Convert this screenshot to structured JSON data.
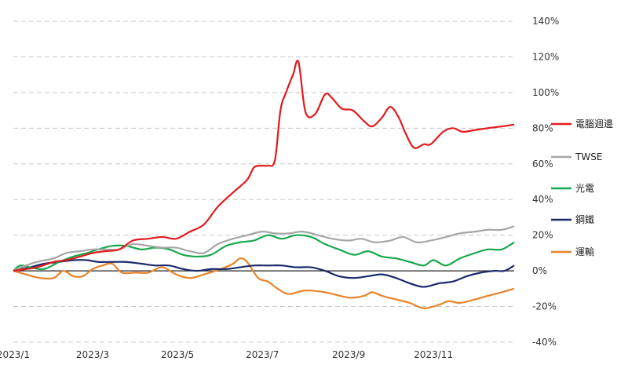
{
  "chart_data": {
    "type": "line",
    "title": "",
    "xlabel": "",
    "ylabel": "",
    "ylim": [
      -40,
      140
    ],
    "y_axis_side": "right",
    "y_ticks": [
      -40,
      -20,
      0,
      20,
      40,
      60,
      80,
      100,
      120,
      140
    ],
    "y_tick_labels": [
      "-40%",
      "-20%",
      "0%",
      "20%",
      "40%",
      "60%",
      "80%",
      "100%",
      "120%",
      "140%"
    ],
    "x_tick_labels": [
      "2023/1",
      "2023/3",
      "2023/5",
      "2023/7",
      "2023/9",
      "2023/11"
    ],
    "x_ticks": [
      "2023-01-03",
      "2023-03-01",
      "2023-05-01",
      "2023-07-01",
      "2023-09-01",
      "2023-11-01"
    ],
    "x_range": [
      "2023-01-03",
      "2023-12-29"
    ],
    "grid": "horizontal dashed",
    "legend": "right",
    "series": [
      {
        "name": "電腦週邊",
        "color": "#e3191c",
        "points": [
          [
            "2023-01-03",
            0
          ],
          [
            "2023-01-12",
            1
          ],
          [
            "2023-01-20",
            2
          ],
          [
            "2023-02-01",
            5
          ],
          [
            "2023-02-10",
            6
          ],
          [
            "2023-02-20",
            8
          ],
          [
            "2023-03-01",
            10
          ],
          [
            "2023-03-10",
            11
          ],
          [
            "2023-03-20",
            12
          ],
          [
            "2023-03-30",
            17
          ],
          [
            "2023-04-10",
            18
          ],
          [
            "2023-04-20",
            19
          ],
          [
            "2023-04-30",
            18
          ],
          [
            "2023-05-10",
            22
          ],
          [
            "2023-05-20",
            26
          ],
          [
            "2023-05-30",
            36
          ],
          [
            "2023-06-10",
            44
          ],
          [
            "2023-06-20",
            51
          ],
          [
            "2023-06-25",
            58
          ],
          [
            "2023-07-01",
            59
          ],
          [
            "2023-07-05",
            59
          ],
          [
            "2023-07-10",
            62
          ],
          [
            "2023-07-14",
            90
          ],
          [
            "2023-07-18",
            100
          ],
          [
            "2023-07-23",
            110
          ],
          [
            "2023-07-27",
            117
          ],
          [
            "2023-08-01",
            89
          ],
          [
            "2023-08-08",
            88
          ],
          [
            "2023-08-15",
            99
          ],
          [
            "2023-08-20",
            97
          ],
          [
            "2023-08-27",
            91
          ],
          [
            "2023-09-04",
            90
          ],
          [
            "2023-09-12",
            84
          ],
          [
            "2023-09-18",
            81
          ],
          [
            "2023-09-25",
            86
          ],
          [
            "2023-10-01",
            92
          ],
          [
            "2023-10-07",
            86
          ],
          [
            "2023-10-12",
            77
          ],
          [
            "2023-10-18",
            69
          ],
          [
            "2023-10-25",
            71
          ],
          [
            "2023-10-30",
            71
          ],
          [
            "2023-11-08",
            78
          ],
          [
            "2023-11-15",
            80
          ],
          [
            "2023-11-22",
            78
          ],
          [
            "2023-12-01",
            79
          ],
          [
            "2023-12-10",
            80
          ],
          [
            "2023-12-20",
            81
          ],
          [
            "2023-12-29",
            82
          ]
        ]
      },
      {
        "name": "TWSE",
        "color": "#a6a6a6",
        "points": [
          [
            "2023-01-03",
            0
          ],
          [
            "2023-01-12",
            3
          ],
          [
            "2023-01-20",
            5
          ],
          [
            "2023-02-01",
            7
          ],
          [
            "2023-02-10",
            10
          ],
          [
            "2023-02-20",
            11
          ],
          [
            "2023-03-01",
            12
          ],
          [
            "2023-03-10",
            12
          ],
          [
            "2023-03-20",
            12
          ],
          [
            "2023-03-30",
            15
          ],
          [
            "2023-04-10",
            14
          ],
          [
            "2023-04-20",
            13
          ],
          [
            "2023-04-30",
            13
          ],
          [
            "2023-05-10",
            11
          ],
          [
            "2023-05-20",
            10
          ],
          [
            "2023-05-30",
            15
          ],
          [
            "2023-06-10",
            18
          ],
          [
            "2023-06-20",
            20
          ],
          [
            "2023-07-01",
            22
          ],
          [
            "2023-07-10",
            21
          ],
          [
            "2023-07-20",
            21
          ],
          [
            "2023-07-30",
            22
          ],
          [
            "2023-08-10",
            20
          ],
          [
            "2023-08-20",
            18
          ],
          [
            "2023-09-01",
            17
          ],
          [
            "2023-09-10",
            18
          ],
          [
            "2023-09-20",
            16
          ],
          [
            "2023-10-01",
            17
          ],
          [
            "2023-10-10",
            19
          ],
          [
            "2023-10-20",
            16
          ],
          [
            "2023-10-30",
            17
          ],
          [
            "2023-11-10",
            19
          ],
          [
            "2023-11-20",
            21
          ],
          [
            "2023-12-01",
            22
          ],
          [
            "2023-12-10",
            23
          ],
          [
            "2023-12-20",
            23
          ],
          [
            "2023-12-29",
            25
          ]
        ]
      },
      {
        "name": "光電",
        "color": "#17a74b",
        "points": [
          [
            "2023-01-03",
            0
          ],
          [
            "2023-01-08",
            3
          ],
          [
            "2023-01-15",
            2
          ],
          [
            "2023-01-25",
            1
          ],
          [
            "2023-02-05",
            5
          ],
          [
            "2023-02-15",
            8
          ],
          [
            "2023-02-25",
            10
          ],
          [
            "2023-03-05",
            12
          ],
          [
            "2023-03-15",
            14
          ],
          [
            "2023-03-25",
            14
          ],
          [
            "2023-04-05",
            12
          ],
          [
            "2023-04-15",
            13
          ],
          [
            "2023-04-25",
            12
          ],
          [
            "2023-05-05",
            9
          ],
          [
            "2023-05-15",
            8
          ],
          [
            "2023-05-25",
            9
          ],
          [
            "2023-06-05",
            14
          ],
          [
            "2023-06-15",
            16
          ],
          [
            "2023-06-25",
            17
          ],
          [
            "2023-07-05",
            20
          ],
          [
            "2023-07-15",
            18
          ],
          [
            "2023-07-25",
            20
          ],
          [
            "2023-08-05",
            19
          ],
          [
            "2023-08-15",
            15
          ],
          [
            "2023-08-25",
            12
          ],
          [
            "2023-09-05",
            9
          ],
          [
            "2023-09-15",
            11
          ],
          [
            "2023-09-25",
            8
          ],
          [
            "2023-10-05",
            7
          ],
          [
            "2023-10-15",
            5
          ],
          [
            "2023-10-25",
            3
          ],
          [
            "2023-11-01",
            6
          ],
          [
            "2023-11-10",
            3
          ],
          [
            "2023-11-20",
            7
          ],
          [
            "2023-12-01",
            10
          ],
          [
            "2023-12-10",
            12
          ],
          [
            "2023-12-20",
            12
          ],
          [
            "2023-12-29",
            16
          ]
        ]
      },
      {
        "name": "鋼鐵",
        "color": "#1a2a6c",
        "points": [
          [
            "2023-01-03",
            0
          ],
          [
            "2023-01-15",
            2
          ],
          [
            "2023-01-25",
            4
          ],
          [
            "2023-02-05",
            5
          ],
          [
            "2023-02-15",
            6
          ],
          [
            "2023-02-25",
            6
          ],
          [
            "2023-03-05",
            5
          ],
          [
            "2023-03-15",
            5
          ],
          [
            "2023-03-25",
            5
          ],
          [
            "2023-04-05",
            4
          ],
          [
            "2023-04-15",
            3
          ],
          [
            "2023-04-25",
            3
          ],
          [
            "2023-05-05",
            1
          ],
          [
            "2023-05-15",
            0
          ],
          [
            "2023-05-25",
            1
          ],
          [
            "2023-06-05",
            1
          ],
          [
            "2023-06-15",
            2
          ],
          [
            "2023-06-25",
            3
          ],
          [
            "2023-07-05",
            3
          ],
          [
            "2023-07-15",
            3
          ],
          [
            "2023-07-25",
            2
          ],
          [
            "2023-08-05",
            2
          ],
          [
            "2023-08-15",
            0
          ],
          [
            "2023-08-25",
            -3
          ],
          [
            "2023-09-05",
            -4
          ],
          [
            "2023-09-15",
            -3
          ],
          [
            "2023-09-25",
            -2
          ],
          [
            "2023-10-05",
            -4
          ],
          [
            "2023-10-15",
            -7
          ],
          [
            "2023-10-25",
            -9
          ],
          [
            "2023-11-05",
            -7
          ],
          [
            "2023-11-15",
            -6
          ],
          [
            "2023-11-25",
            -3
          ],
          [
            "2023-12-05",
            -1
          ],
          [
            "2023-12-15",
            0
          ],
          [
            "2023-12-22",
            0
          ],
          [
            "2023-12-29",
            3
          ]
        ]
      },
      {
        "name": "運輸",
        "color": "#e8832a",
        "points": [
          [
            "2023-01-03",
            0
          ],
          [
            "2023-01-12",
            -2
          ],
          [
            "2023-01-22",
            -4
          ],
          [
            "2023-02-01",
            -4
          ],
          [
            "2023-02-08",
            0
          ],
          [
            "2023-02-15",
            -3
          ],
          [
            "2023-02-22",
            -3
          ],
          [
            "2023-03-01",
            1
          ],
          [
            "2023-03-08",
            3
          ],
          [
            "2023-03-15",
            4
          ],
          [
            "2023-03-22",
            -1
          ],
          [
            "2023-04-01",
            -1
          ],
          [
            "2023-04-10",
            -1
          ],
          [
            "2023-04-20",
            2
          ],
          [
            "2023-04-30",
            -2
          ],
          [
            "2023-05-10",
            -4
          ],
          [
            "2023-05-20",
            -2
          ],
          [
            "2023-06-01",
            1
          ],
          [
            "2023-06-10",
            4
          ],
          [
            "2023-06-15",
            7
          ],
          [
            "2023-06-20",
            5
          ],
          [
            "2023-06-28",
            -4
          ],
          [
            "2023-07-05",
            -6
          ],
          [
            "2023-07-12",
            -10
          ],
          [
            "2023-07-20",
            -13
          ],
          [
            "2023-08-01",
            -11
          ],
          [
            "2023-08-15",
            -12
          ],
          [
            "2023-09-01",
            -15
          ],
          [
            "2023-09-12",
            -14
          ],
          [
            "2023-09-18",
            -12
          ],
          [
            "2023-09-25",
            -14
          ],
          [
            "2023-10-05",
            -16
          ],
          [
            "2023-10-15",
            -18
          ],
          [
            "2023-10-25",
            -21
          ],
          [
            "2023-11-05",
            -19
          ],
          [
            "2023-11-12",
            -17
          ],
          [
            "2023-11-20",
            -18
          ],
          [
            "2023-12-01",
            -16
          ],
          [
            "2023-12-10",
            -14
          ],
          [
            "2023-12-20",
            -12
          ],
          [
            "2023-12-29",
            -10
          ]
        ]
      }
    ]
  }
}
